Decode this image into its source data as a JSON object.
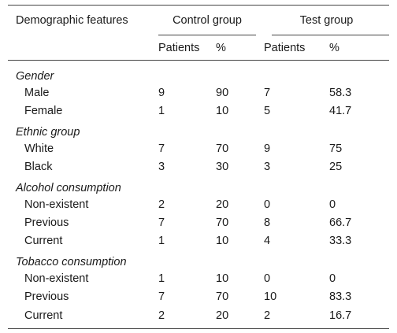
{
  "table": {
    "header": {
      "feature_label": "Demographic features",
      "control_group": "Control group",
      "test_group": "Test group",
      "patients_label": "Patients",
      "percent_label": "%"
    },
    "sections": [
      {
        "title": "Gender",
        "rows": [
          {
            "label": "Male",
            "c_patients": "9",
            "c_pct": "90",
            "t_patients": "7",
            "t_pct": "58.3"
          },
          {
            "label": "Female",
            "c_patients": "1",
            "c_pct": "10",
            "t_patients": "5",
            "t_pct": "41.7"
          }
        ]
      },
      {
        "title": "Ethnic group",
        "rows": [
          {
            "label": "White",
            "c_patients": "7",
            "c_pct": "70",
            "t_patients": "9",
            "t_pct": "75"
          },
          {
            "label": "Black",
            "c_patients": "3",
            "c_pct": "30",
            "t_patients": "3",
            "t_pct": "25"
          }
        ]
      },
      {
        "title": "Alcohol consumption",
        "rows": [
          {
            "label": "Non-existent",
            "c_patients": "2",
            "c_pct": "20",
            "t_patients": "0",
            "t_pct": "0"
          },
          {
            "label": "Previous",
            "c_patients": "7",
            "c_pct": "70",
            "t_patients": "8",
            "t_pct": "66.7"
          },
          {
            "label": "Current",
            "c_patients": "1",
            "c_pct": "10",
            "t_patients": "4",
            "t_pct": "33.3"
          }
        ]
      },
      {
        "title": "Tobacco consumption",
        "rows": [
          {
            "label": "Non-existent",
            "c_patients": "1",
            "c_pct": "10",
            "t_patients": "0",
            "t_pct": "0"
          },
          {
            "label": "Previous",
            "c_patients": "7",
            "c_pct": "70",
            "t_patients": "10",
            "t_pct": "83.3"
          },
          {
            "label": "Current",
            "c_patients": "2",
            "c_pct": "20",
            "t_patients": "2",
            "t_pct": "16.7"
          }
        ]
      }
    ]
  }
}
